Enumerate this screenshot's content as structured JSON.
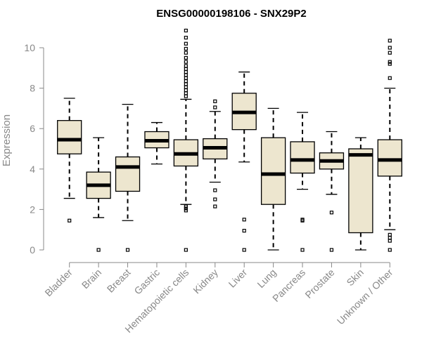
{
  "chart_data": {
    "type": "box",
    "title": "ENSG00000198106 - SNX29P2",
    "xlabel": "",
    "ylabel": "Expression",
    "ylim": [
      0,
      10.5
    ],
    "yticks": [
      0,
      2,
      4,
      6,
      8,
      10
    ],
    "box_color": "#ede6cf",
    "categories": [
      "Bladder",
      "Brain",
      "Breast",
      "Gastric",
      "Hematopoietic cells",
      "Kidney",
      "Liver",
      "Lung",
      "Pancreas",
      "Prostate",
      "Skin",
      "Unknown / Other"
    ],
    "boxes": [
      {
        "name": "Bladder",
        "whislo": 2.55,
        "q1": 4.75,
        "med": 5.45,
        "q3": 6.4,
        "whishi": 7.5,
        "outliers": [
          1.45
        ]
      },
      {
        "name": "Brain",
        "whislo": 1.6,
        "q1": 2.55,
        "med": 3.2,
        "q3": 3.85,
        "whishi": 5.55,
        "outliers": [
          0.0
        ]
      },
      {
        "name": "Breast",
        "whislo": 1.45,
        "q1": 2.9,
        "med": 4.1,
        "q3": 4.6,
        "whishi": 7.2,
        "outliers": [
          0.0
        ]
      },
      {
        "name": "Gastric",
        "whislo": 4.25,
        "q1": 5.05,
        "med": 5.4,
        "q3": 5.85,
        "whishi": 6.3,
        "outliers": []
      },
      {
        "name": "Hematopoietic cells",
        "whislo": 2.25,
        "q1": 4.15,
        "med": 4.75,
        "q3": 5.45,
        "whishi": 7.45,
        "outliers": [
          0.0,
          1.95,
          2.05,
          2.15,
          7.6,
          7.75,
          7.9,
          8.05,
          8.2,
          8.35,
          8.5,
          8.65,
          8.8,
          8.95,
          9.1,
          9.3,
          9.5,
          9.75,
          9.95,
          10.2,
          10.5,
          10.85
        ]
      },
      {
        "name": "Kidney",
        "whislo": 3.35,
        "q1": 4.5,
        "med": 5.05,
        "q3": 5.5,
        "whishi": 6.85,
        "outliers": [
          2.15,
          2.5,
          2.95,
          7.05,
          7.35
        ]
      },
      {
        "name": "Liver",
        "whislo": 4.35,
        "q1": 5.95,
        "med": 6.8,
        "q3": 7.75,
        "whishi": 8.8,
        "outliers": [
          0.0,
          0.95,
          1.5
        ]
      },
      {
        "name": "Lung",
        "whislo": 0.0,
        "q1": 2.25,
        "med": 3.75,
        "q3": 5.55,
        "whishi": 7.0,
        "outliers": []
      },
      {
        "name": "Pancreas",
        "whislo": 3.0,
        "q1": 3.8,
        "med": 4.45,
        "q3": 5.35,
        "whishi": 6.8,
        "outliers": [
          0.0,
          1.45,
          1.5
        ]
      },
      {
        "name": "Prostate",
        "whislo": 2.75,
        "q1": 4.0,
        "med": 4.4,
        "q3": 4.8,
        "whishi": 5.85,
        "outliers": [
          0.0,
          1.85
        ]
      },
      {
        "name": "Skin",
        "whislo": 0.0,
        "q1": 0.85,
        "med": 4.7,
        "q3": 5.0,
        "whishi": 5.55,
        "outliers": []
      },
      {
        "name": "Unknown / Other",
        "whislo": 1.0,
        "q1": 3.65,
        "med": 4.45,
        "q3": 5.45,
        "whishi": 8.0,
        "outliers": [
          0.0,
          0.45,
          0.6,
          0.75,
          8.5,
          9.2,
          9.3,
          9.75,
          10.0,
          10.35
        ]
      }
    ]
  }
}
